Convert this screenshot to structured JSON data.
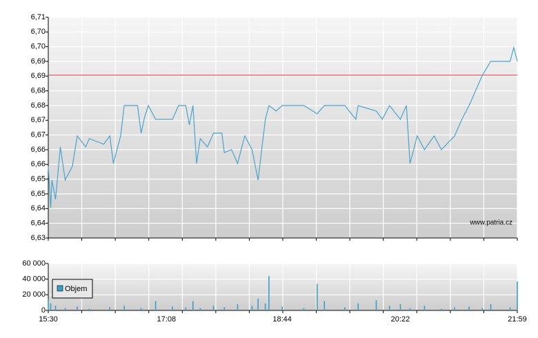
{
  "chart_data": [
    {
      "type": "line",
      "annotation": "www.patria.cz",
      "x": [
        "15:30",
        "15:32",
        "15:33",
        "15:36",
        "15:40",
        "15:44",
        "15:50",
        "15:54",
        "16:01",
        "16:04",
        "16:16",
        "16:21",
        "16:24",
        "16:30",
        "16:33",
        "16:44",
        "16:47",
        "16:50",
        "16:53",
        "16:59",
        "17:13",
        "17:18",
        "17:24",
        "17:27",
        "17:30",
        "17:33",
        "17:36",
        "17:42",
        "17:47",
        "17:54",
        "17:56",
        "18:02",
        "18:07",
        "18:13",
        "18:19",
        "18:24",
        "18:27",
        "18:30",
        "18:33",
        "18:39",
        "18:44",
        "19:02",
        "19:13",
        "19:19",
        "19:36",
        "19:45",
        "19:47",
        "20:02",
        "20:07",
        "20:13",
        "20:22",
        "20:27",
        "20:30",
        "20:36",
        "20:42",
        "20:50",
        "20:56",
        "21:07",
        "21:13",
        "21:19",
        "21:25",
        "21:30",
        "21:37",
        "21:53",
        "21:56",
        "21:59"
      ],
      "series": [
        {
          "color": "#4aa3cc",
          "values": [
            6.656,
            6.641,
            6.651,
            6.644,
            6.663,
            6.651,
            6.656,
            6.667,
            6.663,
            6.666,
            6.664,
            6.667,
            6.657,
            6.667,
            6.678,
            6.678,
            6.668,
            6.674,
            6.678,
            6.673,
            6.673,
            6.678,
            6.678,
            6.671,
            6.678,
            6.657,
            6.666,
            6.663,
            6.668,
            6.668,
            6.661,
            6.662,
            6.657,
            6.667,
            6.662,
            6.651,
            6.662,
            6.673,
            6.678,
            6.676,
            6.678,
            6.678,
            6.675,
            6.678,
            6.678,
            6.673,
            6.678,
            6.676,
            6.673,
            6.678,
            6.673,
            6.678,
            6.657,
            6.667,
            6.662,
            6.667,
            6.662,
            6.667,
            6.673,
            6.678,
            6.684,
            6.689,
            6.694,
            6.694,
            6.699,
            6.694
          ]
        }
      ],
      "reference_line": {
        "value": 6.689,
        "color": "#e03030"
      },
      "ylim": [
        6.63,
        6.71
      ],
      "yticks": [
        {
          "value": 6.63,
          "label": "6,63"
        },
        {
          "value": 6.635333,
          "label": "6,64"
        },
        {
          "value": 6.640667,
          "label": "6,64"
        },
        {
          "value": 6.646,
          "label": "6,65"
        },
        {
          "value": 6.651333,
          "label": "6,65"
        },
        {
          "value": 6.656667,
          "label": "6,66"
        },
        {
          "value": 6.662,
          "label": "6,66"
        },
        {
          "value": 6.667333,
          "label": "6,67"
        },
        {
          "value": 6.672667,
          "label": "6,67"
        },
        {
          "value": 6.678,
          "label": "6,68"
        },
        {
          "value": 6.683333,
          "label": "6,68"
        },
        {
          "value": 6.688667,
          "label": "6,69"
        },
        {
          "value": 6.694,
          "label": "6,69"
        },
        {
          "value": 6.699333,
          "label": "6,70"
        },
        {
          "value": 6.704667,
          "label": "6,70"
        },
        {
          "value": 6.71,
          "label": "6,71"
        }
      ],
      "grid": true
    },
    {
      "type": "bar",
      "x": [
        "15:30",
        "15:32",
        "15:36",
        "15:44",
        "15:54",
        "16:04",
        "16:21",
        "16:33",
        "16:47",
        "16:59",
        "17:13",
        "17:24",
        "17:30",
        "17:36",
        "17:47",
        "17:56",
        "18:07",
        "18:19",
        "18:24",
        "18:30",
        "18:33",
        "18:44",
        "19:02",
        "19:13",
        "19:19",
        "19:36",
        "19:47",
        "20:02",
        "20:13",
        "20:22",
        "20:30",
        "20:42",
        "20:56",
        "21:07",
        "21:19",
        "21:30",
        "21:37",
        "21:53",
        "21:59"
      ],
      "series": [
        {
          "name": "Objem",
          "color": "#3b9ec9",
          "values": [
            14000,
            9000,
            6000,
            3000,
            5000,
            2000,
            4000,
            6000,
            3000,
            12000,
            5000,
            4000,
            12000,
            3000,
            6000,
            4000,
            8000,
            6000,
            15000,
            9000,
            44000,
            5000,
            3000,
            34000,
            12000,
            4000,
            9000,
            13000,
            6000,
            8000,
            3000,
            6000,
            2000,
            4000,
            5000,
            3000,
            8000,
            4000,
            37000
          ]
        }
      ],
      "ylim": [
        0,
        60000
      ],
      "yticks": [
        0,
        {
          "value": 20000,
          "label": "20 000"
        },
        {
          "value": 40000,
          "label": "40 000"
        },
        {
          "value": 60000,
          "label": "60 000"
        }
      ],
      "xticks": [
        "15:30",
        "17:08",
        "18:44",
        "20:22",
        "21:59"
      ],
      "grid": true,
      "legend": "top-left"
    }
  ]
}
